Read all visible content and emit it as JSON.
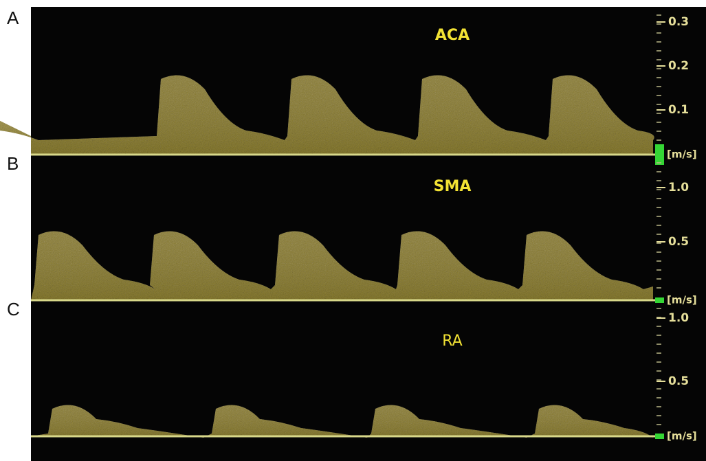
{
  "panels": [
    {
      "letter": "A",
      "vessel": "ACA",
      "ticks": [
        "0.3",
        "0.2",
        "0.1"
      ],
      "unit": "[m/s]"
    },
    {
      "letter": "B",
      "vessel": "SMA",
      "ticks": [
        "1.0",
        "0.5"
      ],
      "unit": "[m/s]"
    },
    {
      "letter": "C",
      "vessel": "RA",
      "ticks": [
        "1.0",
        "0.5"
      ],
      "unit": "[m/s]"
    }
  ]
}
